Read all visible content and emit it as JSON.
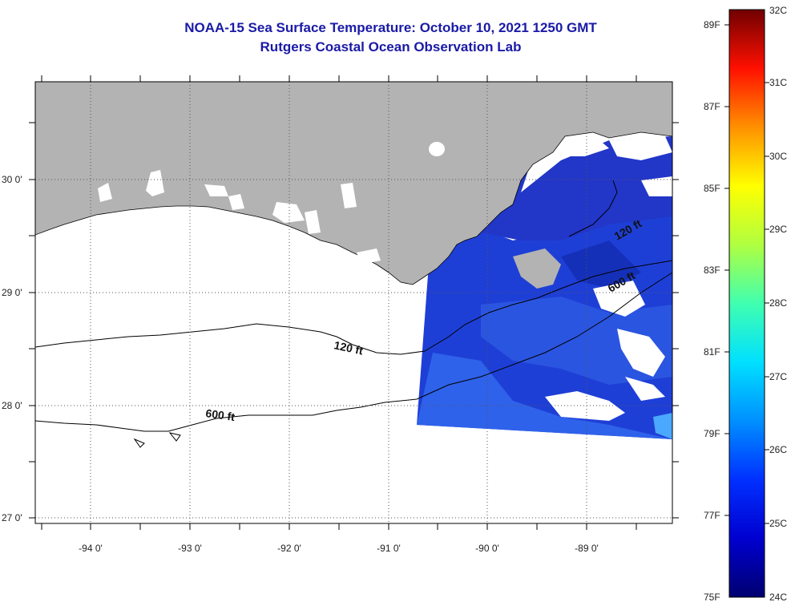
{
  "title": {
    "line1": "NOAA-15 Sea Surface Temperature:  October 10, 2021 1250 GMT",
    "line2": "Rutgers Coastal Ocean Observation Lab"
  },
  "map": {
    "lat_labels": [
      "30 0'",
      "29 0'",
      "28 0'",
      "27 0'"
    ],
    "lon_labels": [
      "-94 0'",
      "-93 0'",
      "-92 0'",
      "-91 0'",
      "-90 0'",
      "-89 0'"
    ],
    "contours": [
      {
        "label": "120 ft"
      },
      {
        "label": "600 ft"
      },
      {
        "label": "120 ft"
      },
      {
        "label": "600 ft"
      }
    ],
    "colors": {
      "land": "#b3b3b3",
      "ocean_none": "#ffffff",
      "sst_dominant": "#1e3fd6"
    }
  },
  "colorbar": {
    "fahrenheit": [
      "89F",
      "87F",
      "85F",
      "83F",
      "81F",
      "79F",
      "77F",
      "75F"
    ],
    "celsius": [
      "32C",
      "31C",
      "30C",
      "29C",
      "28C",
      "27C",
      "26C",
      "25C",
      "24C"
    ]
  }
}
